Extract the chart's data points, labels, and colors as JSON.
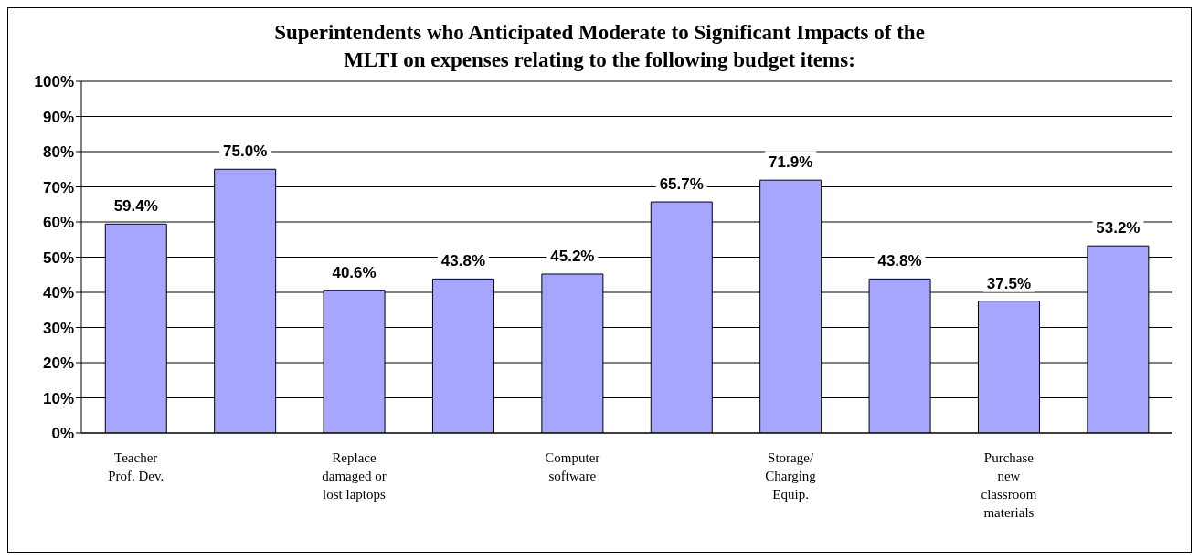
{
  "chart_data": {
    "type": "bar",
    "title": "Superintendents who Anticipated Moderate to Significant Impacts of the\nMLTI on expenses relating to the following budget items:",
    "categories": [
      "Teacher\nProf. Dev.",
      null,
      "Replace\ndamaged or\nlost laptops",
      null,
      "Computer\nsoftware",
      null,
      "Storage/\nCharging\nEquip.",
      null,
      "Purchase\nnew\nclassroom\nmaterials",
      null
    ],
    "values": [
      59.4,
      75.0,
      40.6,
      43.8,
      45.2,
      65.7,
      71.9,
      43.8,
      37.5,
      53.2
    ],
    "value_labels": [
      "59.4%",
      "75.0%",
      "40.6%",
      "43.8%",
      "45.2%",
      "65.7%",
      "71.9%",
      "43.8%",
      "37.5%",
      "53.2%"
    ],
    "color": "#a6a6ff",
    "ylim": [
      0,
      100
    ],
    "yticks": [
      {
        "value": 0,
        "label": "0%"
      },
      {
        "value": 10,
        "label": "10%"
      },
      {
        "value": 20,
        "label": "20%"
      },
      {
        "value": 30,
        "label": "30%"
      },
      {
        "value": 40,
        "label": "40%"
      },
      {
        "value": 50,
        "label": "50%"
      },
      {
        "value": 60,
        "label": "60%"
      },
      {
        "value": 70,
        "label": "70%"
      },
      {
        "value": 80,
        "label": "80%"
      },
      {
        "value": 90,
        "label": "90%"
      },
      {
        "value": 100,
        "label": "100%"
      }
    ],
    "grid": "y",
    "legend": false
  }
}
